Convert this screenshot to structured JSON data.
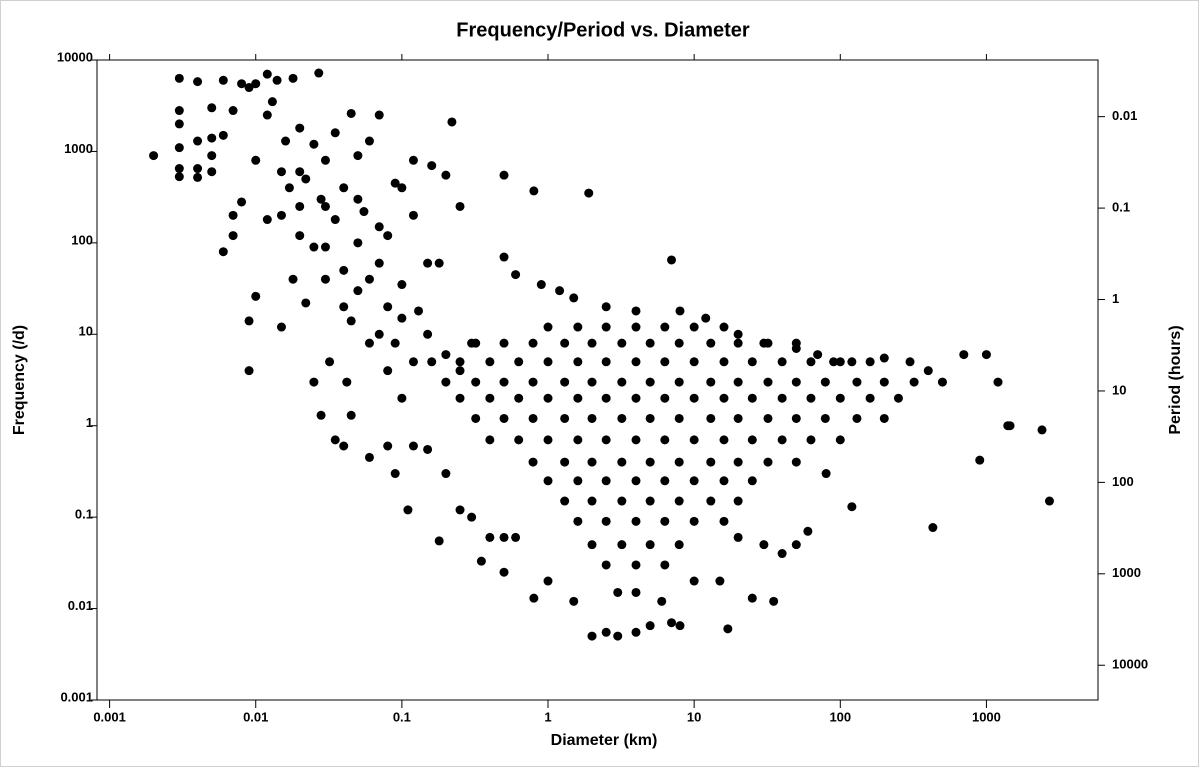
{
  "chart_data": {
    "type": "scatter",
    "title": "Frequency/Period vs. Diameter",
    "x_label": "Diameter (km)",
    "y_label": "Frequency (/d)",
    "y2_label": "Period (hours)",
    "xscale": "log",
    "yscale": "log",
    "y2scale": "log",
    "xlim": [
      0.00082,
      5800
    ],
    "ylim": [
      0.001,
      10000
    ],
    "y2lim": [
      24000,
      0.0024
    ],
    "xticks": [
      0.001,
      0.01,
      0.1,
      1,
      10,
      100,
      1000
    ],
    "yticks": [
      0.001,
      0.01,
      0.1,
      1,
      10,
      100,
      1000,
      10000
    ],
    "y2ticks": [
      0.01,
      0.1,
      1,
      10,
      100,
      1000,
      10000
    ],
    "color": "#000000",
    "x": [
      0.002,
      0.003,
      0.003,
      0.003,
      0.003,
      0.003,
      0.003,
      0.004,
      0.004,
      0.004,
      0.004,
      0.005,
      0.005,
      0.005,
      0.005,
      0.006,
      0.006,
      0.006,
      0.007,
      0.007,
      0.007,
      0.008,
      0.008,
      0.009,
      0.009,
      0.009,
      0.01,
      0.01,
      0.01,
      0.012,
      0.012,
      0.012,
      0.013,
      0.014,
      0.015,
      0.015,
      0.016,
      0.017,
      0.018,
      0.018,
      0.02,
      0.02,
      0.02,
      0.022,
      0.022,
      0.025,
      0.025,
      0.027,
      0.028,
      0.03,
      0.03,
      0.032,
      0.035,
      0.035,
      0.04,
      0.04,
      0.042,
      0.045,
      0.045,
      0.05,
      0.05,
      0.055,
      0.06,
      0.06,
      0.07,
      0.07,
      0.08,
      0.08,
      0.09,
      0.1,
      0.1,
      0.1,
      0.11,
      0.12,
      0.12,
      0.15,
      0.16,
      0.2,
      0.22,
      0.25,
      0.13,
      0.015,
      0.02,
      0.025,
      0.03,
      0.04,
      0.05,
      0.06,
      0.07,
      0.08,
      0.1,
      0.03,
      0.05,
      0.07,
      0.09,
      0.12,
      0.15,
      0.2,
      0.25,
      0.3,
      0.18,
      0.035,
      0.04,
      0.028,
      0.045,
      0.06,
      0.08,
      0.09,
      0.12,
      0.15,
      0.18,
      0.2,
      0.25,
      0.3,
      0.35,
      0.4,
      0.5,
      0.5,
      0.6,
      0.8,
      0.5,
      0.8,
      1.9,
      7,
      0.5,
      0.6,
      0.9,
      1.2,
      1.5,
      2.5,
      4,
      8,
      12,
      20,
      30,
      50,
      70,
      90,
      120,
      200,
      300,
      400,
      700,
      1000,
      1200,
      1400,
      1450,
      2400,
      2700,
      900,
      430,
      120,
      80,
      60,
      50,
      40,
      30,
      20,
      15,
      10,
      7,
      5,
      4,
      3,
      2,
      2.5,
      8,
      17,
      25,
      35,
      4,
      6,
      1.5,
      1,
      3,
      1,
      1.6,
      2.5,
      4,
      6.3,
      10,
      16,
      0.32,
      0.5,
      0.79,
      1.3,
      2,
      3.2,
      5,
      7.9,
      13,
      20,
      32,
      50,
      0.16,
      0.25,
      0.4,
      0.63,
      1,
      1.6,
      2.5,
      4,
      6.3,
      10,
      16,
      25,
      40,
      63,
      100,
      160,
      0.2,
      0.32,
      0.5,
      0.79,
      1.3,
      2,
      3.2,
      5,
      7.9,
      13,
      20,
      32,
      50,
      79,
      130,
      200,
      320,
      500,
      0.25,
      0.4,
      0.63,
      1,
      1.6,
      2.5,
      4,
      6.3,
      10,
      16,
      25,
      40,
      63,
      100,
      160,
      250,
      0.32,
      0.5,
      0.79,
      1.3,
      2,
      3.2,
      5,
      7.9,
      13,
      20,
      32,
      50,
      79,
      130,
      200,
      0.4,
      0.63,
      1,
      1.6,
      2.5,
      4,
      6.3,
      10,
      16,
      25,
      40,
      63,
      100,
      0.79,
      1.3,
      2,
      3.2,
      5,
      7.9,
      13,
      20,
      32,
      50,
      1,
      1.6,
      2.5,
      4,
      6.3,
      10,
      16,
      25,
      1.3,
      2,
      3.2,
      5,
      7.9,
      13,
      20,
      1.6,
      2.5,
      4,
      6.3,
      10,
      16,
      2,
      3.2,
      5,
      7.9,
      2.5,
      4,
      6.3
    ],
    "values": [
      900,
      6300,
      2800,
      2000,
      1100,
      650,
      530,
      5800,
      1300,
      650,
      520,
      3000,
      1400,
      900,
      600,
      6000,
      1500,
      80,
      2800,
      200,
      120,
      5500,
      280,
      5000,
      4,
      14,
      5500,
      800,
      26,
      7000,
      2500,
      180,
      3500,
      6000,
      600,
      12,
      1300,
      400,
      6300,
      40,
      1800,
      250,
      120,
      500,
      22,
      1200,
      3,
      7200,
      300,
      800,
      90,
      5,
      1600,
      180,
      400,
      50,
      3,
      2600,
      14,
      900,
      100,
      220,
      1300,
      8,
      2500,
      60,
      120,
      20,
      450,
      400,
      35,
      2,
      0.12,
      800,
      200,
      60,
      700,
      550,
      2100,
      250,
      18,
      200,
      600,
      90,
      40,
      20,
      300,
      40,
      10,
      4,
      15,
      250,
      30,
      150,
      8,
      5,
      10,
      6,
      4,
      8,
      60,
      0.7,
      0.6,
      1.3,
      1.3,
      0.45,
      0.6,
      0.3,
      0.6,
      0.55,
      0.055,
      0.3,
      0.12,
      0.1,
      0.033,
      0.06,
      0.025,
      0.06,
      0.06,
      0.013,
      550,
      370,
      350,
      65,
      70,
      45,
      35,
      30,
      25,
      20,
      18,
      18,
      15,
      10,
      8,
      7,
      6,
      5,
      5,
      5.5,
      5,
      4,
      6,
      6,
      3,
      1,
      1,
      0.9,
      0.15,
      0.42,
      0.077,
      0.13,
      0.3,
      0.07,
      0.05,
      0.04,
      0.05,
      0.06,
      0.02,
      0.02,
      0.007,
      0.0065,
      0.0055,
      0.005,
      0.005,
      0.0055,
      0.0065,
      0.006,
      0.013,
      0.012,
      0.015,
      0.012,
      0.012,
      0.02,
      0.015,
      12,
      12,
      12,
      12,
      12,
      12,
      12,
      8,
      8,
      8,
      8,
      8,
      8,
      8,
      8,
      8,
      8,
      8,
      8,
      5,
      5,
      5,
      5,
      5,
      5,
      5,
      5,
      5,
      5,
      5,
      5,
      5,
      5,
      5,
      5,
      3,
      3,
      3,
      3,
      3,
      3,
      3,
      3,
      3,
      3,
      3,
      3,
      3,
      3,
      3,
      3,
      3,
      3,
      2,
      2,
      2,
      2,
      2,
      2,
      2,
      2,
      2,
      2,
      2,
      2,
      2,
      2,
      2,
      2,
      1.2,
      1.2,
      1.2,
      1.2,
      1.2,
      1.2,
      1.2,
      1.2,
      1.2,
      1.2,
      1.2,
      1.2,
      1.2,
      1.2,
      1.2,
      0.7,
      0.7,
      0.7,
      0.7,
      0.7,
      0.7,
      0.7,
      0.7,
      0.7,
      0.7,
      0.7,
      0.7,
      0.7,
      0.4,
      0.4,
      0.4,
      0.4,
      0.4,
      0.4,
      0.4,
      0.4,
      0.4,
      0.4,
      0.25,
      0.25,
      0.25,
      0.25,
      0.25,
      0.25,
      0.25,
      0.25,
      0.15,
      0.15,
      0.15,
      0.15,
      0.15,
      0.15,
      0.15,
      0.09,
      0.09,
      0.09,
      0.09,
      0.09,
      0.09,
      0.05,
      0.05,
      0.05,
      0.05,
      0.03,
      0.03,
      0.03
    ]
  }
}
